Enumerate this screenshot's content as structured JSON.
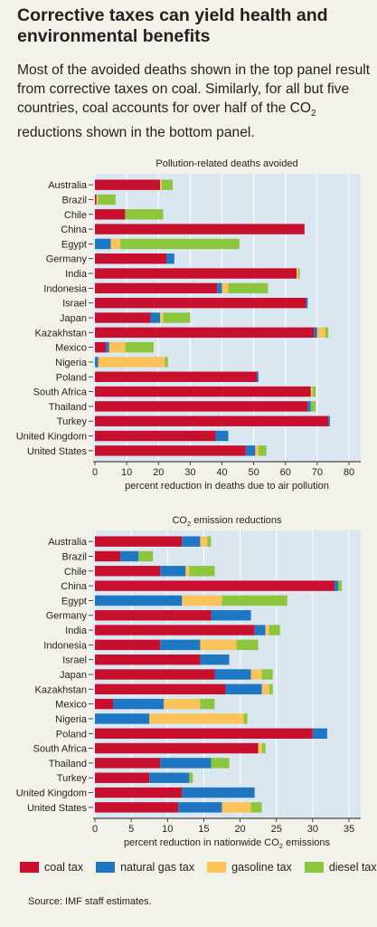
{
  "header": {
    "title": "Corrective taxes can yield health and environmental benefits",
    "subtitle_part1": "Most of the avoided deaths shown in the top panel result from corrective taxes on coal. Similarly, for all but five countries, coal accounts for over half of the CO",
    "subtitle_sub": "2",
    "subtitle_part2": " reductions shown in the bottom panel."
  },
  "colors": {
    "coal": "#c8102e",
    "natural_gas": "#1f77c4",
    "gasoline": "#fdc35b",
    "diesel": "#8cc63f",
    "panel_bg": "#dbe7f0"
  },
  "legend": [
    {
      "key": "coal",
      "label": "coal tax"
    },
    {
      "key": "natural_gas",
      "label": "natural gas tax"
    },
    {
      "key": "gasoline",
      "label": "gasoline tax"
    },
    {
      "key": "diesel",
      "label": "diesel tax"
    }
  ],
  "source": "Source: IMF staff estimates.",
  "chart_data": [
    {
      "type": "bar",
      "orientation": "horizontal",
      "stacked": true,
      "title": "Pollution-related deaths avoided",
      "xlabel": "percent reduction in deaths due to air pollution",
      "xlim": [
        0,
        80
      ],
      "xticks": [
        0,
        10,
        20,
        30,
        40,
        50,
        60,
        70,
        80
      ],
      "categories": [
        "Australia",
        "Brazil",
        "Chile",
        "China",
        "Egypt",
        "Germany",
        "India",
        "Indonesia",
        "Israel",
        "Japan",
        "Kazakhstan",
        "Mexico",
        "Nigeria",
        "Poland",
        "South Africa",
        "Thailand",
        "Turkey",
        "United Kingdom",
        "United States"
      ],
      "series": [
        {
          "name": "coal tax",
          "values": [
            20.5,
            0.5,
            9.5,
            66,
            0,
            22.5,
            63.5,
            38.5,
            66.5,
            17.5,
            69,
            3.5,
            0,
            51,
            68,
            67,
            73.5,
            38,
            47.5
          ]
        },
        {
          "name": "natural gas tax",
          "values": [
            0,
            0,
            0,
            0,
            5,
            2.5,
            0,
            1.5,
            0.5,
            3,
            1,
            1,
            1,
            0.5,
            0,
            1,
            0.5,
            4,
            3
          ]
        },
        {
          "name": "gasoline tax",
          "values": [
            0.5,
            0.5,
            0,
            0,
            3,
            0,
            0.5,
            2,
            0,
            1,
            2.5,
            5,
            21,
            0,
            0.5,
            0,
            0,
            0,
            1
          ]
        },
        {
          "name": "diesel tax",
          "values": [
            3.5,
            5.5,
            12,
            0,
            37.5,
            0,
            0.5,
            12.5,
            0,
            8.5,
            1,
            9,
            1,
            0,
            1,
            1.5,
            0,
            0,
            2.5
          ]
        }
      ]
    },
    {
      "type": "bar",
      "orientation": "horizontal",
      "stacked": true,
      "title": "CO2 emission reductions",
      "title_main": "CO",
      "title_sub": "2",
      "title_rest": " emission reductions",
      "xlabel": "percent reduction in nationwide CO2 emissions",
      "xlabel_main": "percent reduction in nationwide CO",
      "xlabel_sub": "2",
      "xlabel_rest": " emissions",
      "xlim": [
        0,
        35
      ],
      "xticks": [
        0,
        5,
        10,
        15,
        20,
        25,
        30,
        35
      ],
      "categories": [
        "Australia",
        "Brazil",
        "Chile",
        "China",
        "Egypt",
        "Germany",
        "India",
        "Indonesia",
        "Israel",
        "Japan",
        "Kazakhstan",
        "Mexico",
        "Nigeria",
        "Poland",
        "South Africa",
        "Thailand",
        "Turkey",
        "United Kingdom",
        "United States"
      ],
      "series": [
        {
          "name": "coal tax",
          "values": [
            12,
            3.5,
            9,
            33,
            0,
            16,
            22,
            9,
            14.5,
            16.5,
            18,
            2.5,
            0,
            30,
            22.5,
            9,
            7.5,
            12,
            11.5
          ]
        },
        {
          "name": "natural gas tax",
          "values": [
            2.5,
            2.5,
            3.5,
            0.5,
            12,
            5.5,
            1.5,
            5.5,
            4,
            5,
            5,
            7,
            7.5,
            2,
            0,
            7,
            5.5,
            10,
            6
          ]
        },
        {
          "name": "gasoline tax",
          "values": [
            1,
            0,
            0.5,
            0,
            5.5,
            0,
            0.5,
            5,
            0,
            1.5,
            1,
            5,
            13,
            0,
            0.5,
            0,
            0,
            0,
            4
          ]
        },
        {
          "name": "diesel tax",
          "values": [
            0.5,
            2,
            3.5,
            0.5,
            9,
            0,
            1.5,
            3,
            0,
            1.5,
            0.5,
            2,
            0.5,
            0,
            0.5,
            2.5,
            0.5,
            0,
            1.5
          ]
        }
      ]
    }
  ]
}
